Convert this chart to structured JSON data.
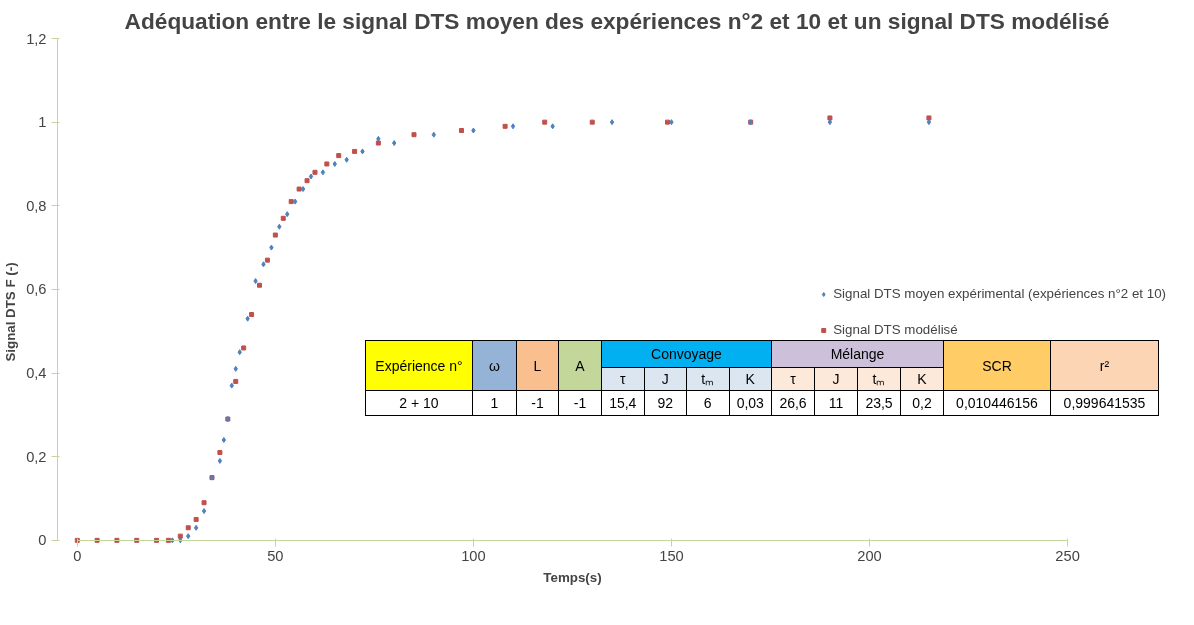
{
  "chart_data": {
    "type": "scatter",
    "title": "Adéquation entre le signal DTS moyen des expériences n°2 et 10 et un signal DTS modélisé",
    "xlabel": "Temps(s)",
    "ylabel": "Signal DTS F (-)",
    "xlim": [
      0,
      250
    ],
    "xticks": [
      0,
      50,
      100,
      150,
      200,
      250
    ],
    "ylim": [
      0,
      1.2
    ],
    "yticks": [
      0,
      {
        "value": 0.2,
        "label": "0,2"
      },
      {
        "value": 0.4,
        "label": "0,4"
      },
      {
        "value": 0.6,
        "label": "0,6"
      },
      {
        "value": 0.8,
        "label": "0,8"
      },
      1,
      {
        "value": 1.2,
        "label": "1,2"
      }
    ],
    "grid": false,
    "legend": "right",
    "series": [
      {
        "name": "Signal DTS moyen expérimental (expériences n°2 et 10)",
        "color": "#4f81bd",
        "marker": "diamond",
        "x": [
          24,
          26,
          28,
          30,
          32,
          34,
          36,
          37,
          38,
          39,
          40,
          41,
          43,
          45,
          47,
          49,
          51,
          53,
          55,
          57,
          59,
          62,
          65,
          68,
          72,
          76,
          80,
          90,
          100,
          110,
          120,
          135,
          150,
          170,
          190,
          215
        ],
        "values": [
          0,
          0,
          0.01,
          0.03,
          0.07,
          0.15,
          0.19,
          0.24,
          0.29,
          0.37,
          0.41,
          0.45,
          0.53,
          0.62,
          0.66,
          0.7,
          0.75,
          0.78,
          0.81,
          0.84,
          0.87,
          0.88,
          0.9,
          0.91,
          0.93,
          0.96,
          0.95,
          0.97,
          0.98,
          0.99,
          0.99,
          1.0,
          1.0,
          1.0,
          1.0,
          1.0
        ]
      },
      {
        "name": "Signal DTS modélisé",
        "color": "#c0504d",
        "marker": "square",
        "x": [
          0,
          5,
          10,
          15,
          20,
          23,
          26,
          28,
          30,
          32,
          34,
          36,
          38,
          40,
          42,
          44,
          46,
          48,
          50,
          52,
          54,
          56,
          58,
          60,
          63,
          66,
          70,
          76,
          85,
          97,
          108,
          118,
          130,
          149,
          170,
          190,
          215
        ],
        "values": [
          0,
          0,
          0,
          0,
          0,
          0,
          0.01,
          0.03,
          0.05,
          0.09,
          0.15,
          0.21,
          0.29,
          0.38,
          0.46,
          0.54,
          0.61,
          0.67,
          0.73,
          0.77,
          0.81,
          0.84,
          0.86,
          0.88,
          0.9,
          0.92,
          0.93,
          0.95,
          0.97,
          0.98,
          0.99,
          1.0,
          1.0,
          1.0,
          1.0,
          1.01,
          1.01
        ]
      }
    ],
    "annotations": [
      "Expérience n°",
      "ω",
      "L",
      "A",
      "Convoyage",
      "Mélange",
      "SCR",
      "r²",
      "τ",
      "J",
      "tₘ",
      "K",
      "τ",
      "J",
      "tₘ",
      "K",
      "2 + 10",
      "1",
      "-1",
      "-1",
      "15,4",
      "92",
      "6",
      "0,03",
      "26,6",
      "11",
      "23,5",
      "0,2",
      "0,010446156",
      "0,999641535"
    ]
  }
}
